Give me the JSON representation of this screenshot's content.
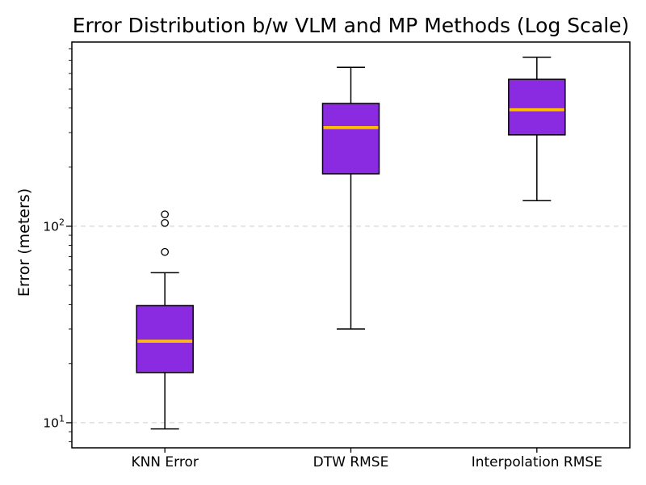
{
  "chart_data": {
    "type": "boxplot",
    "title": "Error Distribution b/w VLM and MP Methods (Log Scale)",
    "xlabel": "",
    "ylabel": "Error (meters)",
    "yscale": "log",
    "ylim": [
      7.45,
      867
    ],
    "y_major_ticks": [
      10,
      100
    ],
    "ytick_labels": [
      "10¹",
      "10²"
    ],
    "grid": "horizontal dashed at major ticks",
    "legend": "none",
    "categories": [
      "KNN Error",
      "DTW RMSE",
      "Interpolation RMSE"
    ],
    "series": [
      {
        "name": "KNN Error",
        "whisker_low": 9.3,
        "q1": 18,
        "median": 26,
        "q3": 39.5,
        "whisker_high": 58,
        "outliers": [
          74,
          104,
          115
        ]
      },
      {
        "name": "DTW RMSE",
        "whisker_low": 30,
        "q1": 185,
        "median": 318,
        "q3": 422,
        "whisker_high": 645,
        "outliers": []
      },
      {
        "name": "Interpolation RMSE",
        "whisker_low": 135,
        "q1": 292,
        "median": 392,
        "q3": 560,
        "whisker_high": 725,
        "outliers": []
      }
    ],
    "colors": {
      "box_fill": "#8A2BE2",
      "box_edge": "#000000",
      "median": "#FFBE00",
      "whisker": "#000000",
      "outlier_edge": "#000000",
      "grid": "#cccccc",
      "axis": "#000000",
      "background": "#ffffff"
    }
  }
}
